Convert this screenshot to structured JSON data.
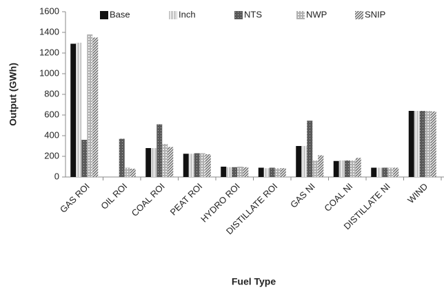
{
  "chart_data": {
    "type": "bar",
    "x_label": "Fuel Type",
    "y_label": "Output (GWh)",
    "categories": [
      "GAS ROI",
      "OIL ROI",
      "COAL ROI",
      "PEAT  ROI",
      "HYDRO ROI",
      "DISTILLATE ROI",
      "GAS NI",
      "COAL NI",
      "DISTILLATE NI",
      "WIND"
    ],
    "series": [
      {
        "name": "Base",
        "color": "#111111",
        "values": [
          1290,
          0,
          280,
          225,
          100,
          90,
          300,
          155,
          90,
          640
        ]
      },
      {
        "name": "Inch",
        "color": "#c8c8c8",
        "values": [
          1300,
          0,
          280,
          225,
          95,
          85,
          300,
          160,
          90,
          640
        ]
      },
      {
        "name": "NTS",
        "color": "#5a5a5a",
        "values": [
          360,
          370,
          510,
          230,
          95,
          90,
          545,
          160,
          90,
          640
        ]
      },
      {
        "name": "NWP",
        "color": "#b0b0b0",
        "values": [
          1380,
          90,
          320,
          230,
          100,
          85,
          160,
          160,
          90,
          640
        ]
      },
      {
        "name": "SNIP",
        "color": "#707070",
        "values": [
          1350,
          80,
          290,
          220,
          95,
          85,
          210,
          185,
          90,
          635
        ]
      }
    ],
    "ylim": [
      0,
      1600
    ],
    "yticks": [
      0,
      200,
      400,
      600,
      800,
      1000,
      1200,
      1400,
      1600
    ],
    "legend": "top"
  }
}
